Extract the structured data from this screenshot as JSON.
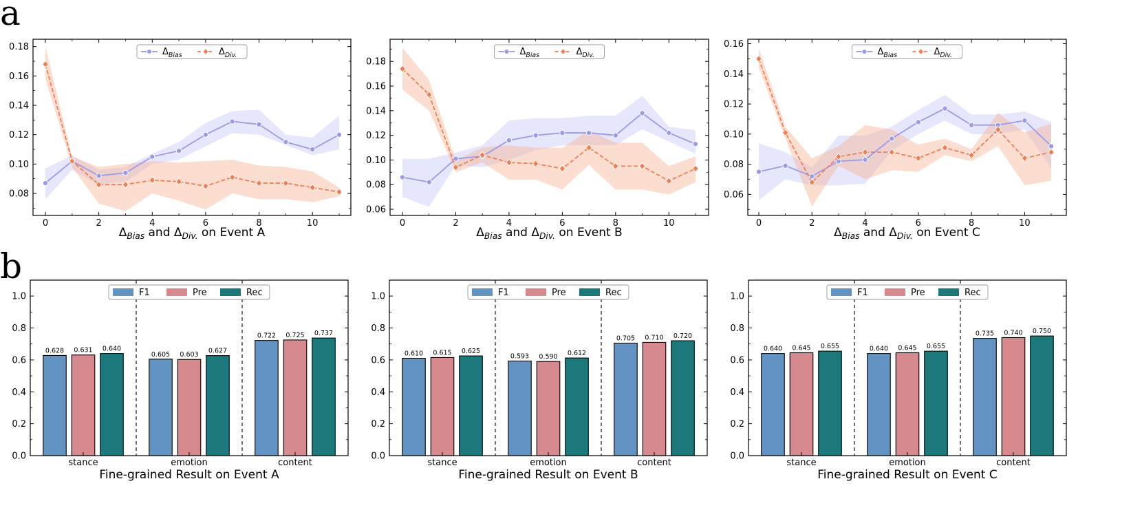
{
  "panel_labels": [
    "a",
    "b"
  ],
  "colors": {
    "bias": "#9a9ae8",
    "bias_fill": "#b7b7f5",
    "div": "#ef7f53",
    "div_fill": "#f7b596",
    "f1": "#6293c2",
    "pre": "#d68a8d",
    "rec": "#1b797b"
  },
  "chart_data": [
    {
      "type": "line",
      "event": "A",
      "xlabel_parts": [
        "Δ",
        "Bias",
        " and ",
        "Δ",
        "Div.",
        "  on Event A"
      ],
      "legend": [
        [
          "Δ",
          "Bias"
        ],
        [
          "Δ",
          "Div."
        ]
      ],
      "x": [
        0,
        1,
        2,
        3,
        4,
        5,
        6,
        7,
        8,
        9,
        10,
        11
      ],
      "xticks": [
        0,
        2,
        4,
        6,
        8,
        10
      ],
      "ylim": [
        0.065,
        0.185
      ],
      "yticks": [
        0.08,
        0.1,
        0.12,
        0.14,
        0.16,
        0.18
      ],
      "ytick_labels": [
        "0.08",
        "0.10",
        "0.12",
        "0.14",
        "0.16",
        "0.18"
      ],
      "series": [
        {
          "name": "Bias",
          "values": [
            0.087,
            0.102,
            0.092,
            0.094,
            0.105,
            0.109,
            0.12,
            0.129,
            0.127,
            0.115,
            0.11,
            0.12
          ],
          "lower": [
            0.076,
            0.096,
            0.086,
            0.088,
            0.1,
            0.103,
            0.112,
            0.121,
            0.12,
            0.113,
            0.106,
            0.11
          ],
          "upper": [
            0.097,
            0.106,
            0.096,
            0.098,
            0.107,
            0.115,
            0.128,
            0.136,
            0.137,
            0.12,
            0.118,
            0.133
          ]
        },
        {
          "name": "Div.",
          "values": [
            0.168,
            0.102,
            0.086,
            0.086,
            0.089,
            0.088,
            0.085,
            0.091,
            0.087,
            0.087,
            0.084,
            0.081
          ],
          "lower": [
            0.158,
            0.098,
            0.073,
            0.068,
            0.08,
            0.075,
            0.069,
            0.08,
            0.076,
            0.076,
            0.074,
            0.078
          ],
          "upper": [
            0.18,
            0.105,
            0.098,
            0.1,
            0.102,
            0.101,
            0.102,
            0.103,
            0.099,
            0.098,
            0.095,
            0.084
          ]
        }
      ]
    },
    {
      "type": "line",
      "event": "B",
      "xlabel_parts": [
        "Δ",
        "Bias",
        " and ",
        "Δ",
        "Div.",
        "  on Event B"
      ],
      "legend": [
        [
          "Δ",
          "Bias"
        ],
        [
          "Δ",
          "Div."
        ]
      ],
      "x": [
        0,
        1,
        2,
        3,
        4,
        5,
        6,
        7,
        8,
        9,
        10,
        11
      ],
      "xticks": [
        0,
        2,
        4,
        6,
        8,
        10
      ],
      "ylim": [
        0.055,
        0.198
      ],
      "yticks": [
        0.06,
        0.08,
        0.1,
        0.12,
        0.14,
        0.16,
        0.18
      ],
      "ytick_labels": [
        "0.06",
        "0.08",
        "0.10",
        "0.12",
        "0.14",
        "0.16",
        "0.18"
      ],
      "series": [
        {
          "name": "Bias",
          "values": [
            0.086,
            0.082,
            0.101,
            0.103,
            0.116,
            0.12,
            0.122,
            0.122,
            0.12,
            0.138,
            0.122,
            0.113
          ],
          "lower": [
            0.07,
            0.062,
            0.096,
            0.094,
            0.1,
            0.108,
            0.112,
            0.112,
            0.112,
            0.125,
            0.115,
            0.105
          ],
          "upper": [
            0.101,
            0.101,
            0.106,
            0.112,
            0.132,
            0.134,
            0.134,
            0.136,
            0.136,
            0.152,
            0.127,
            0.124
          ]
        },
        {
          "name": "Div.",
          "values": [
            0.174,
            0.153,
            0.094,
            0.104,
            0.098,
            0.097,
            0.093,
            0.11,
            0.095,
            0.095,
            0.083,
            0.093
          ],
          "lower": [
            0.157,
            0.14,
            0.09,
            0.098,
            0.084,
            0.084,
            0.076,
            0.096,
            0.076,
            0.076,
            0.072,
            0.082
          ],
          "upper": [
            0.191,
            0.165,
            0.1,
            0.11,
            0.112,
            0.11,
            0.11,
            0.124,
            0.114,
            0.114,
            0.095,
            0.103
          ]
        }
      ]
    },
    {
      "type": "line",
      "event": "C",
      "xlabel_parts": [
        "Δ",
        "Bias",
        " and ",
        "Δ",
        "Div.",
        "  on Event C"
      ],
      "legend": [
        [
          "Δ",
          "Bias"
        ],
        [
          "Δ",
          "Div."
        ]
      ],
      "x": [
        0,
        1,
        2,
        3,
        4,
        5,
        6,
        7,
        8,
        9,
        10,
        11
      ],
      "xticks": [
        0,
        2,
        4,
        6,
        8,
        10
      ],
      "ylim": [
        0.046,
        0.163
      ],
      "yticks": [
        0.06,
        0.08,
        0.1,
        0.12,
        0.14,
        0.16
      ],
      "ytick_labels": [
        "0.06",
        "0.08",
        "0.10",
        "0.12",
        "0.14",
        "0.16"
      ],
      "series": [
        {
          "name": "Bias",
          "values": [
            0.075,
            0.079,
            0.072,
            0.082,
            0.083,
            0.097,
            0.108,
            0.117,
            0.106,
            0.106,
            0.109,
            0.092
          ],
          "lower": [
            0.056,
            0.07,
            0.066,
            0.066,
            0.067,
            0.089,
            0.1,
            0.109,
            0.1,
            0.1,
            0.103,
            0.077
          ],
          "upper": [
            0.094,
            0.088,
            0.078,
            0.099,
            0.099,
            0.105,
            0.116,
            0.126,
            0.113,
            0.113,
            0.115,
            0.108
          ]
        },
        {
          "name": "Div.",
          "values": [
            0.15,
            0.101,
            0.068,
            0.085,
            0.088,
            0.088,
            0.084,
            0.091,
            0.086,
            0.103,
            0.084,
            0.088
          ],
          "lower": [
            0.144,
            0.097,
            0.052,
            0.079,
            0.07,
            0.076,
            0.075,
            0.086,
            0.082,
            0.092,
            0.066,
            0.069
          ],
          "upper": [
            0.157,
            0.105,
            0.084,
            0.092,
            0.106,
            0.103,
            0.093,
            0.097,
            0.09,
            0.114,
            0.101,
            0.107
          ]
        }
      ]
    },
    {
      "type": "bar",
      "event": "A",
      "title": "Fine-grained Result on Event A",
      "categories": [
        "stance",
        "emotion",
        "content"
      ],
      "legend": [
        "F1",
        "Pre",
        "Rec"
      ],
      "ylim": [
        0,
        1.1
      ],
      "yticks": [
        0.0,
        0.2,
        0.4,
        0.6,
        0.8,
        1.0
      ],
      "ytick_labels": [
        "0.0",
        "0.2",
        "0.4",
        "0.6",
        "0.8",
        "1.0"
      ],
      "series": [
        {
          "name": "F1",
          "values": [
            0.628,
            0.605,
            0.722
          ],
          "labels": [
            "0.628",
            "0.605",
            "0.722"
          ]
        },
        {
          "name": "Pre",
          "values": [
            0.631,
            0.603,
            0.725
          ],
          "labels": [
            "0.631",
            "0.603",
            "0.725"
          ]
        },
        {
          "name": "Rec",
          "values": [
            0.64,
            0.627,
            0.737
          ],
          "labels": [
            "0.640",
            "0.627",
            "0.737"
          ]
        }
      ]
    },
    {
      "type": "bar",
      "event": "B",
      "title": "Fine-grained Result on Event B",
      "categories": [
        "stance",
        "emotion",
        "content"
      ],
      "legend": [
        "F1",
        "Pre",
        "Rec"
      ],
      "ylim": [
        0,
        1.1
      ],
      "yticks": [
        0.0,
        0.2,
        0.4,
        0.6,
        0.8,
        1.0
      ],
      "ytick_labels": [
        "0.0",
        "0.2",
        "0.4",
        "0.6",
        "0.8",
        "1.0"
      ],
      "series": [
        {
          "name": "F1",
          "values": [
            0.61,
            0.593,
            0.705
          ],
          "labels": [
            "0.610",
            "0.593",
            "0.705"
          ]
        },
        {
          "name": "Pre",
          "values": [
            0.615,
            0.59,
            0.71
          ],
          "labels": [
            "0.615",
            "0.590",
            "0.710"
          ]
        },
        {
          "name": "Rec",
          "values": [
            0.625,
            0.612,
            0.72
          ],
          "labels": [
            "0.625",
            "0.612",
            "0.720"
          ]
        }
      ]
    },
    {
      "type": "bar",
      "event": "C",
      "title": "Fine-grained Result on Event C",
      "categories": [
        "stance",
        "emotion",
        "content"
      ],
      "legend": [
        "F1",
        "Pre",
        "Rec"
      ],
      "ylim": [
        0,
        1.1
      ],
      "yticks": [
        0.0,
        0.2,
        0.4,
        0.6,
        0.8,
        1.0
      ],
      "ytick_labels": [
        "0.0",
        "0.2",
        "0.4",
        "0.6",
        "0.8",
        "1.0"
      ],
      "series": [
        {
          "name": "F1",
          "values": [
            0.64,
            0.64,
            0.735
          ],
          "labels": [
            "0.640",
            "0.640",
            "0.735"
          ]
        },
        {
          "name": "Pre",
          "values": [
            0.645,
            0.645,
            0.74
          ],
          "labels": [
            "0.645",
            "0.645",
            "0.740"
          ]
        },
        {
          "name": "Rec",
          "values": [
            0.655,
            0.655,
            0.75
          ],
          "labels": [
            "0.655",
            "0.655",
            "0.750"
          ]
        }
      ]
    }
  ]
}
